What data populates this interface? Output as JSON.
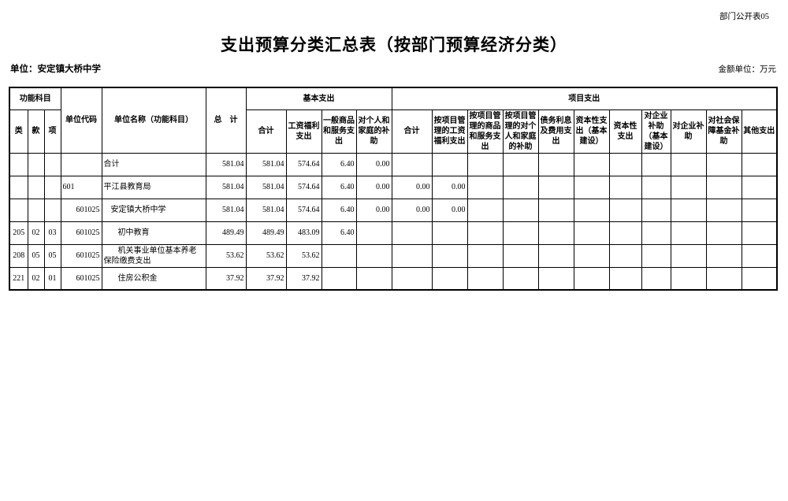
{
  "page": {
    "doc_label": "部门公开表05",
    "title": "支出预算分类汇总表（按部门预算经济分类）",
    "unit_label": "单位：安定镇大桥中学",
    "amount_unit_label": "金额单位：万元"
  },
  "table": {
    "header": {
      "func_subject": "功能科目",
      "func_class": "类",
      "func_section": "款",
      "func_item": "项",
      "unit_code": "单位代码",
      "unit_name": "单位名称（功能科目）",
      "grand_total": "总　计",
      "basic_group": "基本支出",
      "basic_cols": [
        "合计",
        "工资福利支出",
        "一般商品和服务支出",
        "对个人和家庭的补助"
      ],
      "project_group": "项目支出",
      "project_cols": [
        "合计",
        "按项目管理的工资福利支出",
        "按项目管理的商品和服务支出",
        "按项目管理的对个人和家庭的补助",
        "债务利息及费用支出",
        "资本性支出（基本建设）",
        "资本性支出",
        "对企业补助（基本建设）",
        "对企业补助",
        "对社会保障基金补助",
        "其他支出"
      ]
    },
    "rows": [
      {
        "cls": "",
        "sec": "",
        "item": "",
        "code": "",
        "code_align": "left",
        "name": "合计",
        "indent": 0,
        "values": [
          "581.04",
          "581.04",
          "574.64",
          "6.40",
          "0.00",
          "",
          "",
          "",
          "",
          "",
          "",
          "",
          "",
          "",
          "",
          ""
        ]
      },
      {
        "cls": "",
        "sec": "",
        "item": "",
        "code": "601",
        "code_align": "left",
        "name": "平江县教育局",
        "indent": 0,
        "values": [
          "581.04",
          "581.04",
          "574.64",
          "6.40",
          "0.00",
          "0.00",
          "0.00",
          "",
          "",
          "",
          "",
          "",
          "",
          "",
          "",
          ""
        ]
      },
      {
        "cls": "",
        "sec": "",
        "item": "",
        "code": "601025",
        "code_align": "right",
        "name": "安定镇大桥中学",
        "indent": 1,
        "values": [
          "581.04",
          "581.04",
          "574.64",
          "6.40",
          "0.00",
          "0.00",
          "0.00",
          "",
          "",
          "",
          "",
          "",
          "",
          "",
          "",
          ""
        ]
      },
      {
        "cls": "205",
        "sec": "02",
        "item": "03",
        "code": "601025",
        "code_align": "right",
        "name": "初中教育",
        "indent": 2,
        "values": [
          "489.49",
          "489.49",
          "483.09",
          "6.40",
          "",
          "",
          "",
          "",
          "",
          "",
          "",
          "",
          "",
          "",
          "",
          ""
        ]
      },
      {
        "cls": "208",
        "sec": "05",
        "item": "05",
        "code": "601025",
        "code_align": "right",
        "name": "机关事业单位基本养老保险缴费支出",
        "indent": 2,
        "values": [
          "53.62",
          "53.62",
          "53.62",
          "",
          "",
          "",
          "",
          "",
          "",
          "",
          "",
          "",
          "",
          "",
          "",
          ""
        ]
      },
      {
        "cls": "221",
        "sec": "02",
        "item": "01",
        "code": "601025",
        "code_align": "right",
        "name": "住房公积金",
        "indent": 2,
        "values": [
          "37.92",
          "37.92",
          "37.92",
          "",
          "",
          "",
          "",
          "",
          "",
          "",
          "",
          "",
          "",
          "",
          "",
          ""
        ]
      }
    ]
  }
}
